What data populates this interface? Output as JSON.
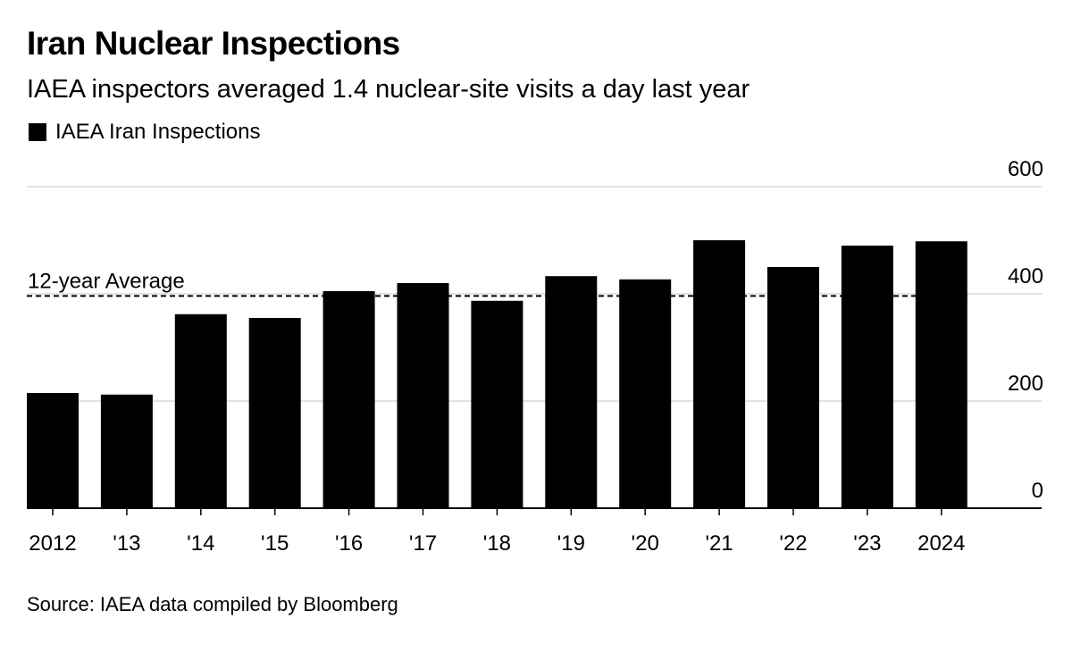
{
  "title": "Iran Nuclear Inspections",
  "subtitle": "IAEA inspectors averaged 1.4 nuclear-site visits a day last year",
  "legend_label": "IAEA Iran Inspections",
  "source": "Source: IAEA data compiled by Bloomberg",
  "colors": {
    "bar": "#000000",
    "grid": "#d9d9d9",
    "axis": "#000000"
  },
  "chart_data": {
    "type": "bar",
    "categories": [
      "2012",
      "'13",
      "'14",
      "'15",
      "'16",
      "'17",
      "'18",
      "'19",
      "'20",
      "'21",
      "'22",
      "'23",
      "2024"
    ],
    "series": [
      {
        "name": "IAEA Iran Inspections",
        "values": [
          215,
          212,
          362,
          355,
          405,
          420,
          387,
          433,
          427,
          500,
          450,
          490,
          498
        ]
      }
    ],
    "average": {
      "label": "12-year Average",
      "value": 396
    },
    "y_ticks": [
      "0",
      "200",
      "400",
      "600"
    ],
    "ylim": [
      0,
      600
    ],
    "xlabel": "",
    "ylabel": "",
    "grid": true,
    "legend_position": "top-left"
  }
}
